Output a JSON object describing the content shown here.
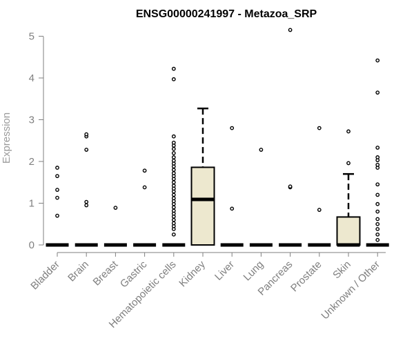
{
  "chart_data": {
    "type": "box",
    "title": "ENSG00000241997 - Metazoa_SRP",
    "xlabel": "",
    "ylabel": "Expression",
    "ylim": [
      0,
      5.2
    ],
    "yticks": [
      0,
      1,
      2,
      3,
      4,
      5
    ],
    "grid": false,
    "colors": {
      "box_fill": "#ede8cf",
      "stroke": "#000000",
      "axis": "#7f7f7f"
    },
    "categories": [
      "Bladder",
      "Brain",
      "Breast",
      "Gastric",
      "Hematopoietic cells",
      "Kidney",
      "Liver",
      "Lung",
      "Pancreas",
      "Prostate",
      "Skin",
      "Unknown / Other"
    ],
    "boxes": [
      {
        "category": "Bladder",
        "q1": 0,
        "median": 0,
        "q3": 0,
        "whisker_low": 0,
        "whisker_high": 0,
        "outliers": [
          0.7,
          1.13,
          1.32,
          1.65,
          1.85
        ]
      },
      {
        "category": "Brain",
        "q1": 0,
        "median": 0,
        "q3": 0,
        "whisker_low": 0,
        "whisker_high": 0,
        "outliers": [
          0.95,
          1.03,
          2.28,
          2.6,
          2.65
        ]
      },
      {
        "category": "Breast",
        "q1": 0,
        "median": 0,
        "q3": 0,
        "whisker_low": 0,
        "whisker_high": 0,
        "outliers": [
          0.89
        ]
      },
      {
        "category": "Gastric",
        "q1": 0,
        "median": 0,
        "q3": 0,
        "whisker_low": 0,
        "whisker_high": 0,
        "outliers": [
          1.38,
          1.78
        ]
      },
      {
        "category": "Hematopoietic cells",
        "q1": 0,
        "median": 0,
        "q3": 0,
        "whisker_low": 0,
        "whisker_high": 0,
        "outliers": [
          0.25,
          0.38,
          0.45,
          0.52,
          0.6,
          0.68,
          0.75,
          0.82,
          0.9,
          0.98,
          1.05,
          1.12,
          1.2,
          1.28,
          1.35,
          1.42,
          1.5,
          1.58,
          1.65,
          1.72,
          1.8,
          1.88,
          1.95,
          2.02,
          2.1,
          2.2,
          2.3,
          2.38,
          2.45,
          2.6,
          3.97,
          4.22
        ]
      },
      {
        "category": "Kidney",
        "q1": 0,
        "median": 1.09,
        "q3": 1.86,
        "whisker_low": 0,
        "whisker_high": 3.27,
        "outliers": []
      },
      {
        "category": "Liver",
        "q1": 0,
        "median": 0,
        "q3": 0,
        "whisker_low": 0,
        "whisker_high": 0,
        "outliers": [
          0.87,
          2.8
        ]
      },
      {
        "category": "Lung",
        "q1": 0,
        "median": 0,
        "q3": 0,
        "whisker_low": 0,
        "whisker_high": 0,
        "outliers": [
          2.28
        ]
      },
      {
        "category": "Pancreas",
        "q1": 0,
        "median": 0,
        "q3": 0,
        "whisker_low": 0,
        "whisker_high": 0,
        "outliers": [
          1.38,
          1.4,
          5.15
        ]
      },
      {
        "category": "Prostate",
        "q1": 0,
        "median": 0,
        "q3": 0,
        "whisker_low": 0,
        "whisker_high": 0,
        "outliers": [
          0.84,
          2.8
        ]
      },
      {
        "category": "Skin",
        "q1": 0,
        "median": 0,
        "q3": 0.67,
        "whisker_low": 0,
        "whisker_high": 1.7,
        "outliers": [
          1.96,
          2.72
        ]
      },
      {
        "category": "Unknown / Other",
        "q1": 0,
        "median": 0,
        "q3": 0,
        "whisker_low": 0,
        "whisker_high": 0,
        "outliers": [
          0.12,
          0.25,
          0.38,
          0.5,
          0.62,
          0.8,
          0.98,
          1.2,
          1.45,
          1.85,
          1.92,
          2.03,
          2.1,
          2.33,
          3.65,
          4.42
        ]
      }
    ]
  }
}
